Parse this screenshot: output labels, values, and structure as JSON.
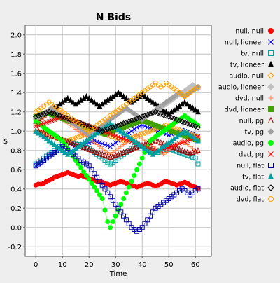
{
  "chart_data": {
    "type": "line",
    "title": "N Bids",
    "xlabel": "Time",
    "ylabel": "$",
    "xlim": [
      -4,
      66
    ],
    "ylim": [
      -0.3,
      2.1
    ],
    "xticks": [
      0,
      10,
      20,
      30,
      40,
      50,
      60
    ],
    "yticks": [
      -0.2,
      0.0,
      0.2,
      0.4,
      0.6,
      0.8,
      1.0,
      1.2,
      1.4,
      1.6,
      1.8,
      2.0
    ],
    "ytick_labels": [
      "-0.2",
      "0.0",
      "0.2",
      "0.4",
      "0.6",
      "0.8",
      "1.0",
      "1.2",
      "1.4",
      "1.6",
      "1.8",
      "2.0"
    ],
    "grid": true,
    "legend_position": "right",
    "x": [
      0,
      1,
      2,
      3,
      4,
      5,
      6,
      7,
      8,
      9,
      10,
      11,
      12,
      13,
      14,
      15,
      16,
      17,
      18,
      19,
      20,
      21,
      22,
      23,
      24,
      25,
      26,
      27,
      28,
      29,
      30,
      31,
      32,
      33,
      34,
      35,
      36,
      37,
      38,
      39,
      40,
      41,
      42,
      43,
      44,
      45,
      46,
      47,
      48,
      49,
      50,
      51,
      52,
      53,
      54,
      55,
      56,
      57,
      58,
      59,
      60,
      61
    ],
    "series": [
      {
        "name": "null, null",
        "color": "#ff0000",
        "marker": "circle",
        "filled": true,
        "values": [
          0.44,
          0.45,
          0.45,
          0.46,
          0.48,
          0.49,
          0.5,
          0.52,
          0.53,
          0.54,
          0.55,
          0.56,
          0.57,
          0.56,
          0.55,
          0.54,
          0.53,
          0.54,
          0.53,
          0.52,
          0.51,
          0.5,
          0.49,
          0.48,
          0.48,
          0.47,
          0.46,
          0.45,
          0.44,
          0.45,
          0.46,
          0.47,
          0.48,
          0.47,
          0.46,
          0.45,
          0.44,
          0.43,
          0.42,
          0.43,
          0.44,
          0.45,
          0.46,
          0.45,
          0.44,
          0.43,
          0.44,
          0.45,
          0.47,
          0.48,
          0.47,
          0.46,
          0.45,
          0.44,
          0.45,
          0.46,
          0.47,
          0.46,
          0.44,
          0.43,
          0.42,
          0.41
        ]
      },
      {
        "name": "null, lioneer",
        "color": "#0000ff",
        "marker": "x",
        "filled": false,
        "values": [
          0.64,
          0.66,
          0.68,
          0.7,
          0.72,
          0.74,
          0.76,
          0.78,
          0.8,
          0.82,
          0.84,
          0.86,
          0.88,
          0.87,
          0.86,
          0.85,
          0.84,
          0.85,
          0.86,
          0.87,
          0.88,
          0.89,
          0.9,
          0.89,
          0.88,
          0.87,
          0.86,
          0.85,
          0.84,
          0.86,
          0.88,
          0.9,
          0.92,
          0.94,
          0.96,
          0.98,
          1.0,
          1.02,
          1.04,
          1.05,
          1.06,
          1.05,
          1.04,
          1.03,
          1.02,
          1.01,
          1.0,
          0.99,
          0.98,
          0.97,
          0.96,
          0.97,
          0.98,
          0.99,
          1.0,
          1.01,
          1.0,
          0.99,
          0.98,
          0.97,
          0.96,
          0.95
        ]
      },
      {
        "name": "tv, null",
        "color": "#00a0a0",
        "marker": "square",
        "filled": false,
        "values": [
          0.66,
          0.68,
          0.7,
          0.72,
          0.74,
          0.76,
          0.78,
          0.8,
          0.82,
          0.84,
          0.86,
          0.88,
          0.9,
          0.89,
          0.88,
          0.87,
          0.86,
          0.85,
          0.84,
          0.83,
          0.82,
          0.8,
          0.78,
          0.76,
          0.74,
          0.72,
          0.7,
          0.68,
          0.66,
          0.68,
          0.7,
          0.72,
          0.74,
          0.76,
          0.78,
          0.8,
          0.82,
          0.84,
          0.86,
          0.85,
          0.84,
          0.83,
          0.82,
          0.81,
          0.8,
          0.79,
          0.78,
          0.79,
          0.8,
          0.81,
          0.82,
          0.81,
          0.8,
          0.79,
          0.78,
          0.77,
          0.76,
          0.75,
          0.74,
          0.73,
          0.72,
          0.66
        ]
      },
      {
        "name": "tv, lioneer",
        "color": "#000000",
        "marker": "triangle",
        "filled": true,
        "values": [
          1.1,
          1.12,
          1.14,
          1.16,
          1.18,
          1.2,
          1.22,
          1.24,
          1.26,
          1.28,
          1.3,
          1.32,
          1.34,
          1.32,
          1.3,
          1.28,
          1.3,
          1.32,
          1.34,
          1.36,
          1.34,
          1.32,
          1.3,
          1.28,
          1.26,
          1.28,
          1.3,
          1.32,
          1.34,
          1.36,
          1.38,
          1.4,
          1.38,
          1.36,
          1.34,
          1.32,
          1.3,
          1.32,
          1.34,
          1.36,
          1.38,
          1.36,
          1.34,
          1.32,
          1.3,
          1.28,
          1.26,
          1.24,
          1.22,
          1.2,
          1.18,
          1.2,
          1.22,
          1.24,
          1.26,
          1.28,
          1.3,
          1.28,
          1.26,
          1.24,
          1.22,
          1.2
        ]
      },
      {
        "name": "audio, null",
        "color": "#ffa000",
        "marker": "diamond",
        "filled": false,
        "values": [
          1.0,
          1.0,
          0.99,
          0.98,
          0.97,
          0.96,
          0.95,
          0.94,
          0.93,
          0.92,
          0.91,
          0.9,
          0.9,
          0.91,
          0.92,
          0.93,
          0.94,
          0.95,
          0.96,
          0.97,
          0.98,
          0.99,
          1.0,
          1.0,
          0.99,
          0.98,
          0.97,
          0.96,
          0.95,
          0.94,
          0.93,
          0.92,
          0.91,
          0.9,
          0.91,
          0.92,
          0.93,
          0.94,
          0.95,
          0.96,
          0.97,
          0.98,
          0.99,
          1.0,
          1.01,
          1.02,
          1.03,
          1.04,
          1.05,
          1.06,
          1.05,
          1.04,
          1.03,
          1.02,
          1.01,
          1.0,
          0.99,
          0.98,
          0.97,
          0.96,
          0.95,
          0.94
        ]
      },
      {
        "name": "audio, lioneer",
        "color": "#c0c0c0",
        "marker": "diamond",
        "filled": true,
        "values": [
          1.05,
          1.06,
          1.07,
          1.08,
          1.09,
          1.1,
          1.11,
          1.12,
          1.13,
          1.14,
          1.15,
          1.14,
          1.13,
          1.12,
          1.11,
          1.1,
          1.09,
          1.08,
          1.07,
          1.06,
          1.05,
          1.04,
          1.03,
          1.02,
          1.01,
          1.0,
          1.01,
          1.02,
          1.03,
          1.04,
          1.05,
          1.06,
          1.07,
          1.08,
          1.09,
          1.1,
          1.11,
          1.12,
          1.13,
          1.14,
          1.15,
          1.16,
          1.17,
          1.18,
          1.19,
          1.2,
          1.22,
          1.24,
          1.26,
          1.28,
          1.3,
          1.32,
          1.34,
          1.36,
          1.38,
          1.4,
          1.42,
          1.44,
          1.46,
          1.48,
          1.46,
          1.44
        ]
      },
      {
        "name": "dvd, null",
        "color": "#ff8040",
        "marker": "plus",
        "filled": false,
        "values": [
          1.08,
          1.1,
          1.12,
          1.14,
          1.16,
          1.18,
          1.2,
          1.18,
          1.16,
          1.14,
          1.12,
          1.1,
          1.08,
          1.06,
          1.04,
          1.02,
          1.0,
          0.98,
          0.96,
          0.94,
          0.92,
          0.9,
          0.88,
          0.86,
          0.84,
          0.82,
          0.8,
          0.78,
          0.76,
          0.78,
          0.8,
          0.82,
          0.84,
          0.86,
          0.88,
          0.9,
          0.92,
          0.94,
          0.96,
          0.94,
          0.92,
          0.9,
          0.88,
          0.86,
          0.84,
          0.82,
          0.8,
          0.78,
          0.76,
          0.78,
          0.8,
          0.82,
          0.84,
          0.86,
          0.88,
          0.9,
          0.88,
          0.86,
          0.84,
          0.82,
          0.8,
          0.78
        ]
      },
      {
        "name": "dvd, lioneer",
        "color": "#40a000",
        "marker": "square",
        "filled": true,
        "values": [
          1.15,
          1.16,
          1.17,
          1.18,
          1.19,
          1.18,
          1.17,
          1.16,
          1.15,
          1.14,
          1.13,
          1.12,
          1.11,
          1.1,
          1.09,
          1.08,
          1.07,
          1.06,
          1.05,
          1.04,
          1.03,
          1.02,
          1.01,
          1.0,
          0.99,
          0.98,
          0.97,
          0.98,
          0.99,
          1.0,
          1.01,
          1.02,
          1.03,
          1.04,
          1.05,
          1.06,
          1.07,
          1.08,
          1.09,
          1.1,
          1.11,
          1.1,
          1.09,
          1.08,
          1.07,
          1.06,
          1.05,
          1.04,
          1.03,
          1.02,
          1.01,
          1.0,
          0.99,
          0.98,
          0.97,
          0.96,
          0.95,
          0.94,
          0.93,
          0.92,
          0.91,
          0.9
        ]
      },
      {
        "name": "null, pg",
        "color": "#a00000",
        "marker": "triangle",
        "filled": false,
        "values": [
          1.0,
          1.0,
          0.99,
          0.98,
          0.97,
          0.96,
          0.95,
          0.94,
          0.93,
          0.92,
          0.91,
          0.9,
          0.89,
          0.88,
          0.87,
          0.86,
          0.85,
          0.84,
          0.83,
          0.82,
          0.81,
          0.8,
          0.79,
          0.78,
          0.77,
          0.76,
          0.75,
          0.74,
          0.73,
          0.74,
          0.75,
          0.76,
          0.77,
          0.78,
          0.79,
          0.8,
          0.81,
          0.82,
          0.83,
          0.84,
          0.85,
          0.86,
          0.87,
          0.88,
          0.89,
          0.9,
          0.89,
          0.88,
          0.87,
          0.86,
          0.85,
          0.84,
          0.83,
          0.82,
          0.81,
          0.8,
          0.79,
          0.78,
          0.77,
          0.78,
          0.79,
          0.8
        ]
      },
      {
        "name": "tv, pg",
        "color": "#a0a0a0",
        "marker": "diamond",
        "filled": true,
        "values": [
          1.12,
          1.14,
          1.16,
          1.18,
          1.2,
          1.22,
          1.24,
          1.22,
          1.2,
          1.18,
          1.16,
          1.14,
          1.12,
          1.1,
          1.08,
          1.06,
          1.04,
          1.02,
          1.0,
          0.98,
          0.96,
          0.98,
          1.0,
          1.02,
          1.04,
          1.06,
          1.08,
          1.1,
          1.12,
          1.14,
          1.16,
          1.18,
          1.2,
          1.22,
          1.24,
          1.22,
          1.2,
          1.18,
          1.16,
          1.14,
          1.12,
          1.14,
          1.16,
          1.18,
          1.2,
          1.22,
          1.24,
          1.26,
          1.28,
          1.3,
          1.32,
          1.34,
          1.36,
          1.38,
          1.4,
          1.38,
          1.36,
          1.38,
          1.4,
          1.42,
          1.44,
          1.46
        ]
      },
      {
        "name": "audio, pg",
        "color": "#00ff00",
        "marker": "circle",
        "filled": true,
        "values": [
          1.1,
          1.08,
          1.06,
          1.04,
          1.02,
          1.0,
          0.98,
          0.96,
          0.94,
          0.92,
          0.9,
          0.86,
          0.82,
          0.78,
          0.74,
          0.7,
          0.66,
          0.62,
          0.58,
          0.54,
          0.5,
          0.46,
          0.42,
          0.38,
          0.34,
          0.3,
          0.18,
          0.06,
          0.0,
          0.06,
          0.12,
          0.18,
          0.24,
          0.3,
          0.36,
          0.42,
          0.48,
          0.54,
          0.6,
          0.66,
          0.72,
          0.78,
          0.84,
          0.9,
          0.92,
          0.94,
          0.96,
          0.98,
          1.0,
          1.02,
          1.04,
          1.06,
          1.08,
          1.1,
          1.12,
          1.14,
          1.16,
          1.14,
          1.12,
          1.1,
          1.08,
          1.06
        ]
      },
      {
        "name": "dvd, pg",
        "color": "#ff0000",
        "marker": "x",
        "filled": false,
        "values": [
          1.05,
          1.06,
          1.07,
          1.08,
          1.09,
          1.1,
          1.11,
          1.12,
          1.13,
          1.14,
          1.15,
          1.14,
          1.13,
          1.12,
          1.11,
          1.1,
          1.09,
          1.08,
          1.07,
          1.06,
          1.05,
          1.04,
          1.03,
          1.02,
          1.01,
          1.0,
          0.99,
          0.98,
          0.97,
          0.96,
          0.95,
          0.94,
          0.93,
          0.92,
          0.91,
          0.9,
          0.89,
          0.88,
          0.87,
          0.86,
          0.85,
          0.84,
          0.83,
          0.82,
          0.81,
          0.8,
          0.79,
          0.8,
          0.81,
          0.82,
          0.83,
          0.84,
          0.85,
          0.86,
          0.87,
          0.88,
          0.89,
          0.9,
          0.91,
          0.92,
          0.93,
          0.94
        ]
      },
      {
        "name": "null, flat",
        "color": "#0000a0",
        "marker": "square",
        "filled": false,
        "values": [
          0.64,
          0.66,
          0.68,
          0.7,
          0.72,
          0.74,
          0.76,
          0.78,
          0.8,
          0.82,
          0.84,
          0.82,
          0.8,
          0.78,
          0.76,
          0.74,
          0.72,
          0.7,
          0.68,
          0.66,
          0.64,
          0.6,
          0.56,
          0.52,
          0.48,
          0.44,
          0.4,
          0.36,
          0.32,
          0.28,
          0.24,
          0.2,
          0.16,
          0.12,
          0.08,
          0.04,
          0.0,
          -0.02,
          -0.04,
          -0.02,
          0.0,
          0.04,
          0.08,
          0.12,
          0.16,
          0.2,
          0.22,
          0.24,
          0.26,
          0.28,
          0.3,
          0.32,
          0.34,
          0.36,
          0.38,
          0.4,
          0.38,
          0.36,
          0.34,
          0.36,
          0.38,
          0.4
        ]
      },
      {
        "name": "tv, flat",
        "color": "#00a0a0",
        "marker": "triangle",
        "filled": true,
        "values": [
          1.0,
          0.98,
          0.96,
          0.94,
          0.92,
          0.9,
          0.88,
          0.86,
          0.84,
          0.82,
          0.8,
          0.78,
          0.76,
          0.78,
          0.8,
          0.82,
          0.84,
          0.86,
          0.88,
          0.9,
          0.92,
          0.94,
          0.96,
          0.98,
          1.0,
          1.02,
          1.04,
          1.06,
          1.08,
          1.06,
          1.04,
          1.02,
          1.0,
          0.98,
          0.96,
          0.94,
          0.92,
          0.9,
          0.88,
          0.86,
          0.84,
          0.82,
          0.8,
          0.78,
          0.76,
          0.78,
          0.8,
          0.82,
          0.84,
          0.86,
          0.88,
          0.9,
          0.92,
          0.94,
          0.96,
          0.98,
          1.0,
          0.98,
          0.96,
          0.94,
          0.92,
          0.9
        ]
      },
      {
        "name": "audio, flat",
        "color": "#000000",
        "marker": "diamond",
        "filled": false,
        "values": [
          1.15,
          1.16,
          1.17,
          1.18,
          1.19,
          1.2,
          1.19,
          1.18,
          1.17,
          1.16,
          1.15,
          1.14,
          1.13,
          1.12,
          1.11,
          1.1,
          1.09,
          1.08,
          1.07,
          1.06,
          1.05,
          1.04,
          1.03,
          1.02,
          1.01,
          1.0,
          1.01,
          1.02,
          1.03,
          1.04,
          1.05,
          1.06,
          1.07,
          1.08,
          1.09,
          1.1,
          1.11,
          1.12,
          1.13,
          1.14,
          1.15,
          1.16,
          1.17,
          1.18,
          1.19,
          1.2,
          1.19,
          1.18,
          1.17,
          1.16,
          1.15,
          1.14,
          1.13,
          1.12,
          1.11,
          1.1,
          1.09,
          1.08,
          1.07,
          1.06,
          1.05,
          1.04
        ]
      },
      {
        "name": "dvd, flat",
        "color": "#ffa000",
        "marker": "circle",
        "filled": false,
        "values": [
          1.2,
          1.22,
          1.24,
          1.26,
          1.28,
          1.3,
          1.28,
          1.26,
          1.24,
          1.22,
          1.2,
          1.18,
          1.16,
          1.14,
          1.12,
          1.1,
          1.08,
          1.06,
          1.04,
          1.02,
          1.0,
          1.02,
          1.04,
          1.06,
          1.08,
          1.1,
          1.12,
          1.14,
          1.16,
          1.18,
          1.2,
          1.22,
          1.24,
          1.26,
          1.28,
          1.3,
          1.32,
          1.34,
          1.36,
          1.38,
          1.4,
          1.42,
          1.44,
          1.46,
          1.48,
          1.5,
          1.48,
          1.46,
          1.48,
          1.5,
          1.48,
          1.46,
          1.44,
          1.42,
          1.4,
          1.38,
          1.36,
          1.38,
          1.4,
          1.42,
          1.44,
          1.46
        ]
      }
    ]
  }
}
